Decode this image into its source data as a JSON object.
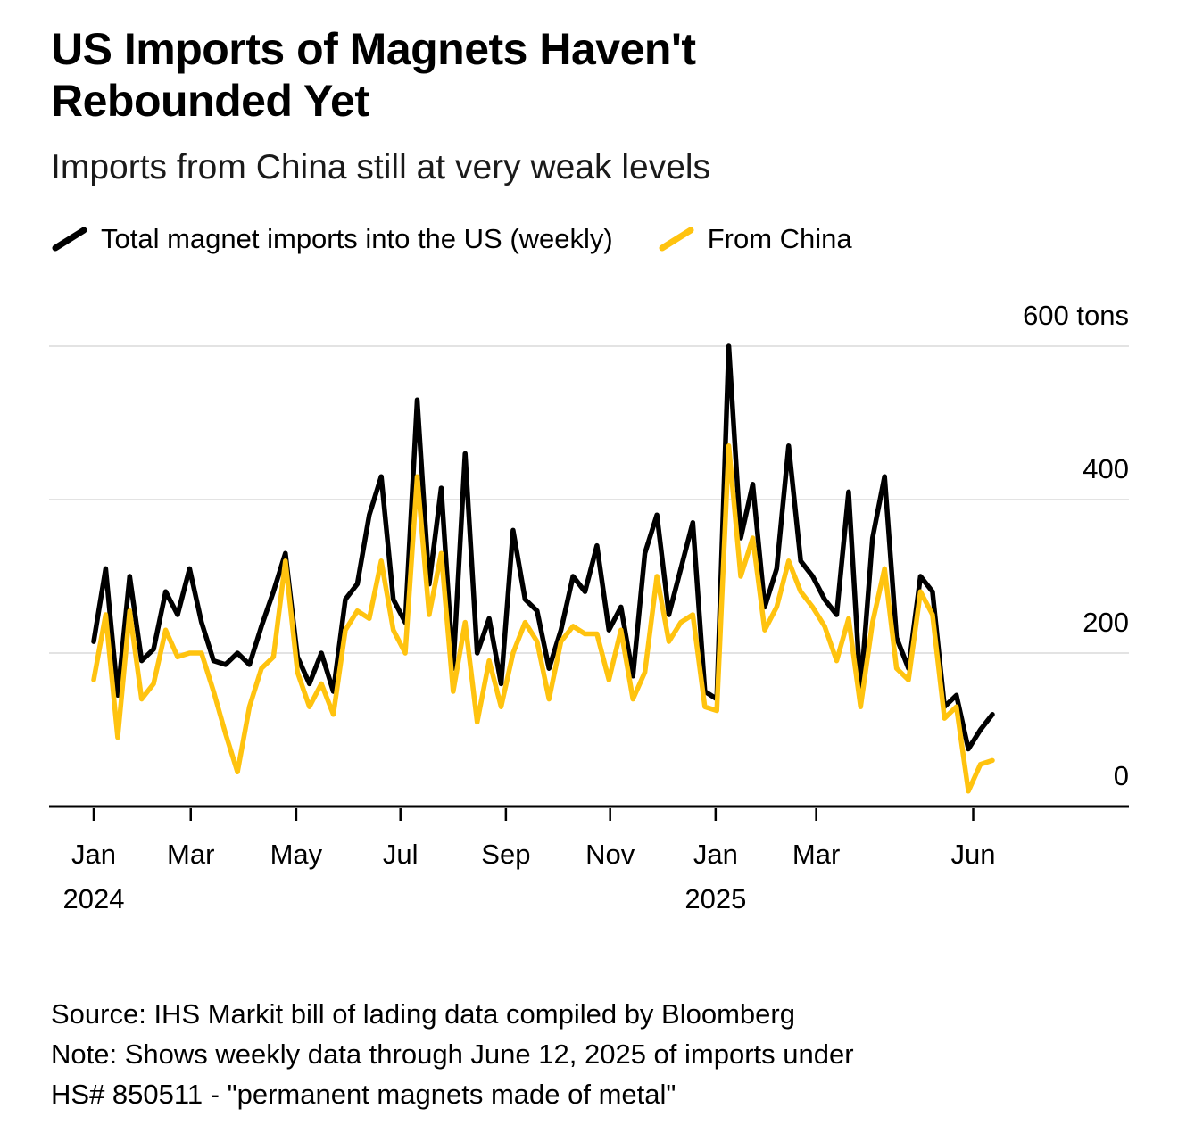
{
  "chart_data": {
    "type": "line",
    "title": "US Imports of Magnets Haven't Rebounded Yet",
    "subtitle": "Imports from China still at very weak levels",
    "unit": "tons",
    "x_frequency": "weekly",
    "legend_position": "top",
    "grid": true,
    "series": [
      {
        "name": "Total magnet imports into the US (weekly)",
        "color": "#000000",
        "values": [
          215,
          310,
          145,
          300,
          190,
          205,
          280,
          250,
          310,
          240,
          190,
          185,
          200,
          185,
          235,
          280,
          330,
          195,
          160,
          200,
          150,
          270,
          290,
          380,
          430,
          270,
          240,
          530,
          290,
          415,
          180,
          460,
          200,
          245,
          160,
          360,
          270,
          255,
          180,
          230,
          300,
          280,
          340,
          230,
          260,
          170,
          330,
          380,
          250,
          310,
          370,
          150,
          140,
          600,
          350,
          420,
          260,
          310,
          470,
          320,
          300,
          270,
          250,
          410,
          150,
          350,
          430,
          220,
          180,
          300,
          280,
          130,
          145,
          75,
          100,
          120
        ]
      },
      {
        "name": "From China",
        "color": "#FFC30F",
        "values": [
          165,
          250,
          90,
          255,
          140,
          160,
          230,
          195,
          200,
          200,
          150,
          95,
          45,
          130,
          180,
          195,
          320,
          175,
          130,
          160,
          120,
          230,
          255,
          245,
          320,
          230,
          200,
          430,
          250,
          330,
          150,
          240,
          110,
          190,
          130,
          200,
          240,
          215,
          140,
          215,
          235,
          225,
          225,
          165,
          230,
          140,
          175,
          300,
          215,
          240,
          250,
          130,
          125,
          470,
          300,
          350,
          230,
          260,
          320,
          280,
          260,
          235,
          190,
          245,
          130,
          240,
          310,
          180,
          165,
          280,
          250,
          115,
          130,
          20,
          55,
          60
        ]
      }
    ],
    "y_axis": {
      "min": 0,
      "max": 600,
      "labels_position": "right",
      "ticks": [
        {
          "value": 600,
          "label": "600 tons"
        },
        {
          "value": 400,
          "label": "400"
        },
        {
          "value": 200,
          "label": "200"
        },
        {
          "value": 0,
          "label": "0"
        }
      ]
    },
    "x_axis": {
      "ticks": [
        {
          "pos": 0,
          "label": "Jan"
        },
        {
          "pos": 8.1,
          "label": "Mar"
        },
        {
          "pos": 16.9,
          "label": "May"
        },
        {
          "pos": 25.6,
          "label": "Jul"
        },
        {
          "pos": 34.4,
          "label": "Sep"
        },
        {
          "pos": 43.1,
          "label": "Nov"
        },
        {
          "pos": 51.9,
          "label": "Jan"
        },
        {
          "pos": 60.3,
          "label": "Mar"
        },
        {
          "pos": 73.4,
          "label": "Jun"
        }
      ],
      "year_labels": [
        {
          "pos": 0,
          "label": "2024"
        },
        {
          "pos": 51.9,
          "label": "2025"
        }
      ]
    }
  },
  "footer": {
    "source": "Source: IHS Markit bill of lading data compiled by Bloomberg",
    "note_line1": "Note: Shows weekly data through June 12, 2025 of imports under",
    "note_line2": "HS# 850511 - \"permanent magnets made of metal\""
  }
}
